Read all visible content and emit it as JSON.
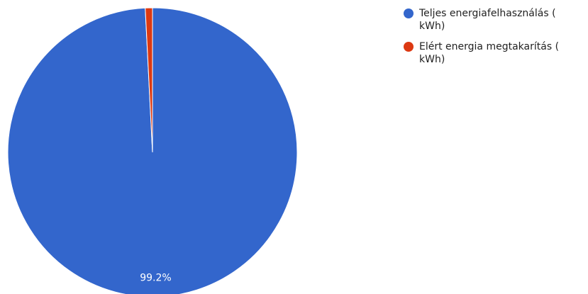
{
  "chart_data": {
    "type": "pie",
    "categories": [
      "Teljes energiafelhasználás ( kWh)",
      "Elért energia megtakarítás ( kWh)"
    ],
    "values": [
      99.2,
      0.8
    ],
    "data_labels": [
      "99.2%",
      ""
    ],
    "colors": [
      "#3366cc",
      "#dc3912"
    ],
    "legend_position": "right",
    "title": ""
  },
  "legend": {
    "items": [
      {
        "label": "Teljes energiafelhasználás ( kWh)",
        "color": "#3366cc"
      },
      {
        "label": "Elért energia megtakarítás ( kWh)",
        "color": "#dc3912"
      }
    ]
  }
}
